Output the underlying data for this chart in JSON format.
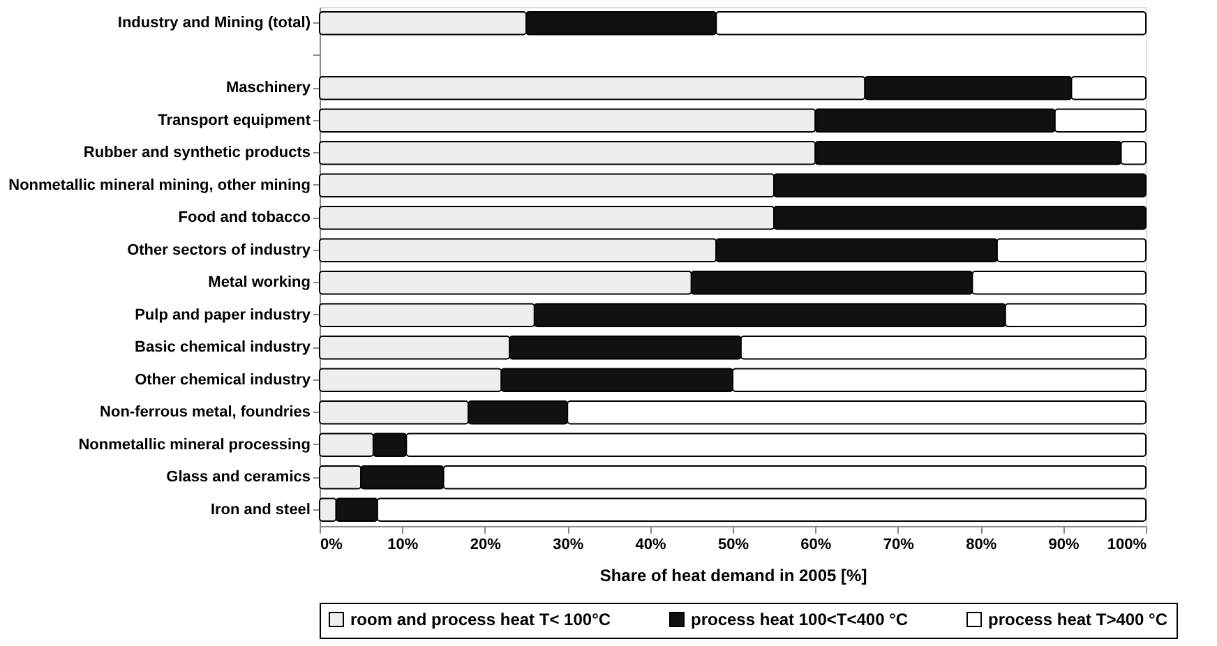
{
  "chart_data": {
    "type": "bar",
    "orientation": "horizontal",
    "stacked": true,
    "xlabel": "Share of heat demand in 2005 [%]",
    "categories": [
      "Industry and Mining (total)",
      null,
      "Maschinery",
      "Transport equipment",
      "Rubber and synthetic products",
      "Nonmetallic mineral mining, other mining",
      "Food and tobacco",
      "Other sectors of industry",
      "Metal working",
      "Pulp and paper industry",
      "Basic chemical industry",
      "Other chemical industry",
      "Non-ferrous metal, foundries",
      "Nonmetallic mineral processing",
      "Glass and ceramics",
      "Iron and steel"
    ],
    "series": [
      {
        "name": "room and process heat T< 100°C",
        "color": "#eeeeee",
        "values": [
          25,
          null,
          66,
          60,
          60,
          55,
          55,
          48,
          45,
          26,
          23,
          22,
          18,
          6.5,
          5,
          2
        ]
      },
      {
        "name": "process heat 100<T<400 °C",
        "color": "#111111",
        "values": [
          23,
          null,
          25,
          29,
          37,
          45,
          45,
          34,
          34,
          57,
          28,
          28,
          12,
          4,
          10,
          5
        ]
      },
      {
        "name": "process heat T>400 °C",
        "color": "#ffffff",
        "values": [
          52,
          null,
          9,
          11,
          3,
          0,
          0,
          18,
          21,
          17,
          49,
          50,
          70,
          89.5,
          85,
          93
        ]
      }
    ],
    "xlim": [
      0,
      100
    ],
    "xticks": [
      {
        "value": 0,
        "label": "0%"
      },
      {
        "value": 10,
        "label": "10%"
      },
      {
        "value": 20,
        "label": "20%"
      },
      {
        "value": 30,
        "label": "30%"
      },
      {
        "value": 40,
        "label": "40%"
      },
      {
        "value": 50,
        "label": "50%"
      },
      {
        "value": 60,
        "label": "60%"
      },
      {
        "value": 70,
        "label": "70%"
      },
      {
        "value": 80,
        "label": "80%"
      },
      {
        "value": 90,
        "label": "90%"
      },
      {
        "value": 100,
        "label": "100%"
      }
    ],
    "grid": false,
    "legend": "bottom"
  }
}
